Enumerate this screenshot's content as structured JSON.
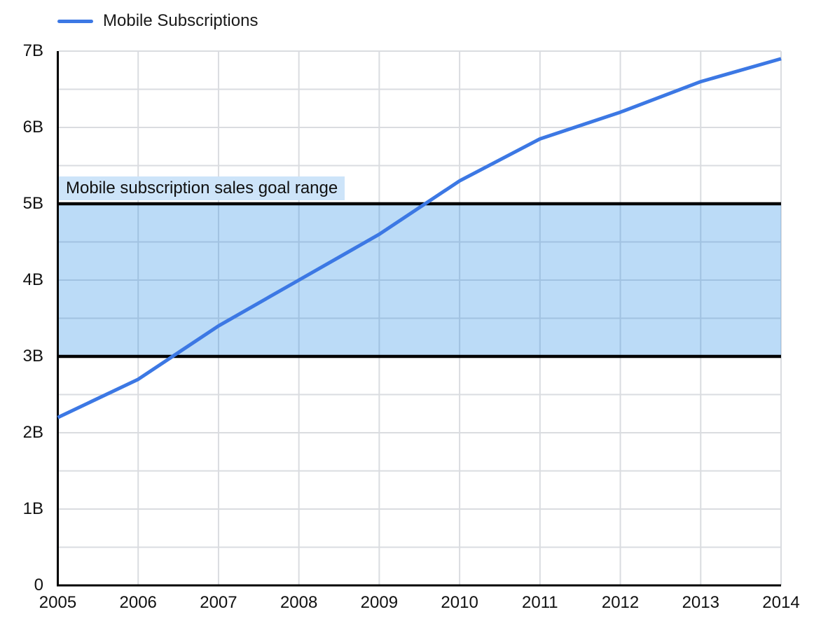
{
  "legend": {
    "series_label": "Mobile Subscriptions"
  },
  "colors": {
    "line": "#3C78E4",
    "band_fill": "rgba(30,136,229,0.30)",
    "band_fill_solid": "#BBDBF7",
    "band_border": "#000000",
    "band_label_highlight": "#CDE4F9",
    "gridline": "#DADCE0",
    "axis": "#000000",
    "text": "#111111"
  },
  "chart_data": {
    "type": "line",
    "title": "",
    "xlabel": "",
    "ylabel": "",
    "x": [
      2005,
      2006,
      2007,
      2008,
      2009,
      2010,
      2011,
      2012,
      2013,
      2014
    ],
    "series": [
      {
        "name": "Mobile Subscriptions",
        "values": [
          2.2,
          2.7,
          3.4,
          4.0,
          4.6,
          5.3,
          5.85,
          6.2,
          6.6,
          6.9
        ]
      }
    ],
    "x_tick_labels": [
      "2005",
      "2006",
      "2007",
      "2008",
      "2009",
      "2010",
      "2011",
      "2012",
      "2013",
      "2014"
    ],
    "y_tick_labels": [
      "0",
      "1B",
      "2B",
      "3B",
      "4B",
      "5B",
      "6B",
      "7B"
    ],
    "y_tick_values": [
      0,
      1,
      2,
      3,
      4,
      5,
      6,
      7
    ],
    "xlim": [
      2005,
      2014
    ],
    "ylim": [
      0,
      7
    ],
    "grid": true,
    "minor_horizontal_grid_step": 0.5,
    "legend_position": "top-left",
    "band": {
      "from": 3,
      "to": 5,
      "label": "Mobile subscription sales goal range"
    }
  }
}
